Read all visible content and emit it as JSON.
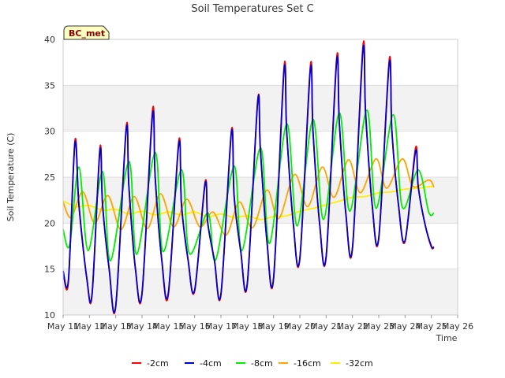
{
  "chart_data": {
    "type": "line",
    "title": "Soil Temperatures Set C",
    "xlabel": "Time",
    "ylabel": "Soil Temperature (C)",
    "badge": "BC_met",
    "xlim": [
      11,
      26
    ],
    "ylim": [
      10,
      40
    ],
    "x_ticks": [
      11,
      12,
      13,
      14,
      15,
      16,
      17,
      18,
      19,
      20,
      21,
      22,
      23,
      24,
      25,
      26
    ],
    "x_tick_labels": [
      "May 11",
      "May 12",
      "May 13",
      "May 14",
      "May 15",
      "May 16",
      "May 17",
      "May 18",
      "May 19",
      "May 20",
      "May 21",
      "May 22",
      "May 23",
      "May 24",
      "May 25",
      "May 26"
    ],
    "y_ticks": [
      10,
      15,
      20,
      25,
      30,
      35,
      40
    ],
    "grid": true,
    "legend_position": "bottom",
    "series": [
      {
        "name": "-2cm",
        "color": "#ff0000",
        "x": [
          11.0,
          11.2,
          11.45,
          11.6,
          11.9,
          12.1,
          12.4,
          12.5,
          12.75,
          13.0,
          13.4,
          13.5,
          13.75,
          14.0,
          14.4,
          14.5,
          14.75,
          15.0,
          15.4,
          15.5,
          15.75,
          16.0,
          16.4,
          16.5,
          16.75,
          17.0,
          17.4,
          17.5,
          17.75,
          18.0,
          18.4,
          18.5,
          18.75,
          19.0,
          19.4,
          19.5,
          19.75,
          20.0,
          20.4,
          20.5,
          20.75,
          21.0,
          21.4,
          21.5,
          21.75,
          22.0,
          22.4,
          22.5,
          22.75,
          23.0,
          23.4,
          23.5,
          23.75,
          24.0,
          24.4,
          24.5,
          24.75,
          25.0,
          25.1
        ],
        "y": [
          14.7,
          13.6,
          29.0,
          22.0,
          14.0,
          12.2,
          28.2,
          22.0,
          15.0,
          10.9,
          30.5,
          24.0,
          15.0,
          12.3,
          32.3,
          25.0,
          16.0,
          12.2,
          29.0,
          22.0,
          16.0,
          12.6,
          24.5,
          20.0,
          16.0,
          12.2,
          30.1,
          23.0,
          17.0,
          13.3,
          33.4,
          28.0,
          18.0,
          13.9,
          37.0,
          30.0,
          20.0,
          16.1,
          37.1,
          30.0,
          20.0,
          16.3,
          38.0,
          31.0,
          21.0,
          17.2,
          39.3,
          32.0,
          22.0,
          18.3,
          37.8,
          30.0,
          22.0,
          18.0,
          28.2,
          24.0,
          20.0,
          17.4,
          17.4
        ]
      },
      {
        "name": "-4cm",
        "color": "#0000cc",
        "x": [
          11.0,
          11.2,
          11.45,
          11.6,
          11.9,
          12.1,
          12.4,
          12.5,
          12.75,
          13.0,
          13.4,
          13.5,
          13.75,
          14.0,
          14.4,
          14.5,
          14.75,
          15.0,
          15.4,
          15.5,
          15.75,
          16.0,
          16.4,
          16.5,
          16.75,
          17.0,
          17.4,
          17.5,
          17.75,
          18.0,
          18.4,
          18.5,
          18.75,
          19.0,
          19.4,
          19.5,
          19.75,
          20.0,
          20.4,
          20.5,
          20.75,
          21.0,
          21.4,
          21.5,
          21.75,
          22.0,
          22.4,
          22.5,
          22.75,
          23.0,
          23.4,
          23.5,
          23.75,
          24.0,
          24.4,
          24.5,
          24.75,
          25.0,
          25.1
        ],
        "y": [
          14.8,
          13.8,
          28.7,
          22.0,
          14.0,
          12.3,
          27.9,
          22.0,
          15.0,
          11.0,
          30.2,
          24.0,
          15.0,
          12.4,
          31.8,
          25.0,
          16.0,
          12.4,
          28.7,
          22.0,
          16.0,
          12.7,
          24.3,
          20.0,
          16.0,
          12.3,
          29.9,
          23.0,
          17.0,
          13.4,
          33.3,
          28.0,
          18.0,
          14.0,
          36.6,
          30.0,
          20.0,
          16.2,
          36.7,
          30.0,
          20.0,
          16.4,
          37.6,
          31.0,
          21.0,
          17.3,
          38.8,
          32.0,
          22.0,
          18.4,
          37.4,
          30.0,
          22.0,
          18.1,
          27.8,
          24.0,
          20.0,
          17.5,
          17.4
        ]
      },
      {
        "name": "-8cm",
        "color": "#00ee00",
        "x": [
          11.0,
          11.25,
          11.6,
          11.95,
          12.5,
          12.8,
          13.5,
          13.8,
          14.5,
          14.8,
          15.5,
          15.8,
          16.5,
          16.8,
          17.5,
          17.8,
          18.5,
          18.85,
          19.5,
          19.9,
          20.5,
          20.9,
          21.5,
          21.9,
          22.55,
          22.9,
          23.55,
          23.9,
          24.5,
          24.9,
          25.1
        ],
        "y": [
          19.3,
          17.6,
          26.1,
          17.0,
          25.6,
          15.9,
          26.7,
          16.6,
          27.7,
          16.9,
          25.8,
          16.7,
          21.1,
          16.0,
          26.2,
          17.0,
          28.2,
          17.8,
          30.8,
          19.7,
          31.3,
          20.4,
          32.0,
          21.3,
          32.3,
          21.6,
          31.8,
          21.7,
          25.8,
          21.2,
          21.1
        ]
      },
      {
        "name": "-16cm",
        "color": "#ffa500",
        "x": [
          11.0,
          11.3,
          11.75,
          12.2,
          12.7,
          13.2,
          13.7,
          14.2,
          14.7,
          15.2,
          15.7,
          16.2,
          16.7,
          17.2,
          17.7,
          18.2,
          18.75,
          19.2,
          19.8,
          20.3,
          20.85,
          21.3,
          21.85,
          22.3,
          22.9,
          23.3,
          23.9,
          24.3,
          24.9,
          25.1
        ],
        "y": [
          22.3,
          20.6,
          23.4,
          20.0,
          23.0,
          19.3,
          22.9,
          19.4,
          23.2,
          19.6,
          22.6,
          19.6,
          21.2,
          18.7,
          22.3,
          19.5,
          23.6,
          20.5,
          25.3,
          21.8,
          26.1,
          22.8,
          26.9,
          23.3,
          27.0,
          23.8,
          27.0,
          24.0,
          24.7,
          23.9
        ]
      },
      {
        "name": "-32cm",
        "color": "#ffee00",
        "x": [
          11.0,
          11.5,
          12.0,
          12.5,
          13.0,
          13.5,
          14.0,
          14.5,
          15.0,
          15.5,
          16.0,
          16.5,
          17.0,
          17.5,
          18.0,
          18.5,
          19.0,
          19.5,
          20.0,
          20.5,
          21.0,
          21.5,
          22.0,
          22.5,
          23.0,
          23.5,
          24.0,
          24.5,
          25.0,
          25.1
        ],
        "y": [
          22.4,
          21.8,
          21.9,
          21.4,
          21.5,
          21.0,
          21.3,
          20.9,
          21.2,
          20.9,
          21.2,
          20.7,
          21.0,
          20.6,
          20.8,
          20.4,
          20.7,
          20.8,
          21.3,
          21.6,
          22.0,
          22.4,
          22.8,
          22.9,
          23.3,
          23.4,
          23.7,
          23.8,
          24.0,
          24.0
        ]
      }
    ]
  }
}
